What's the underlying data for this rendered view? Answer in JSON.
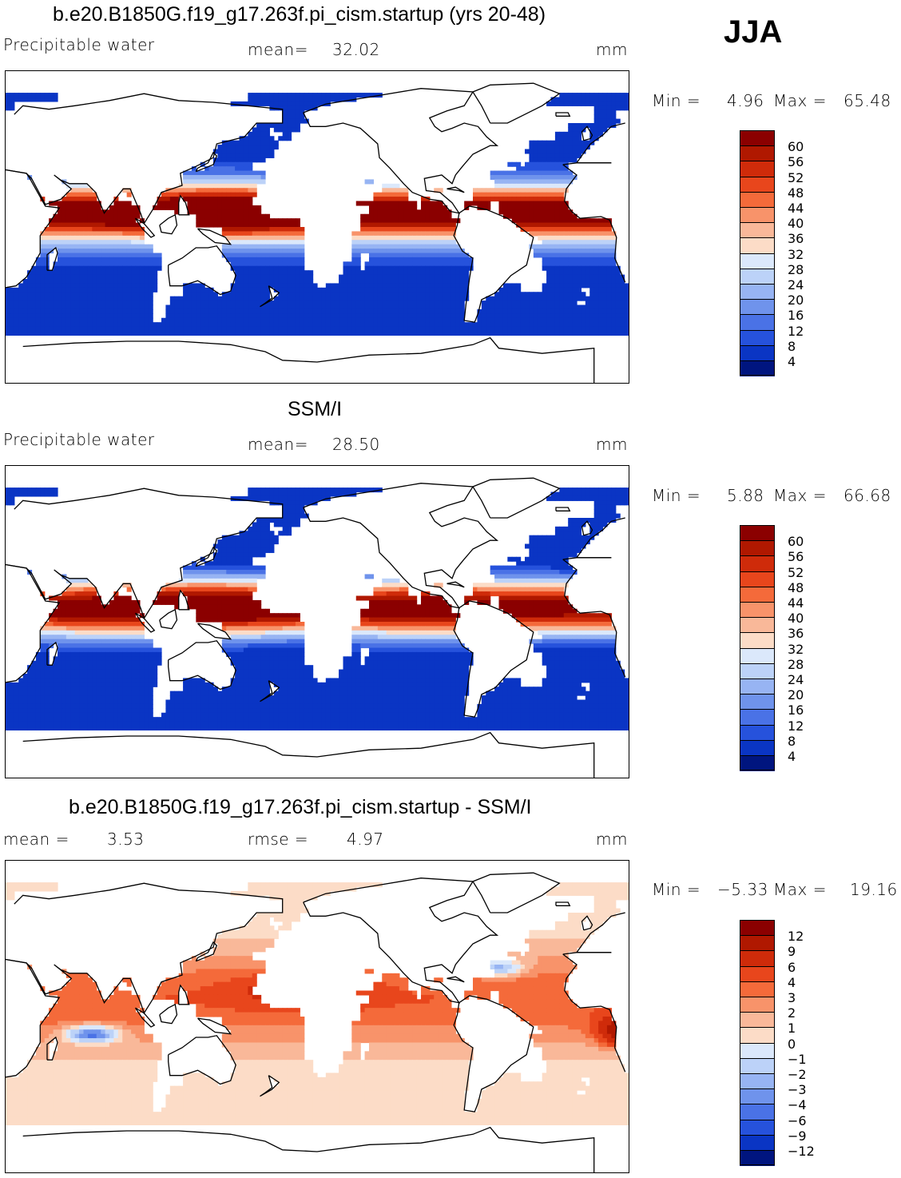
{
  "season": "JJA",
  "panels": [
    {
      "id": "model",
      "title": "b.e20.B1850G.f19_g17.263f.pi_cism.startup (yrs 20-48)",
      "variable": "Precipitable water",
      "stat1_label": "mean=",
      "stat1_value": "32.02",
      "stat2_label": "",
      "stat2_value": "",
      "units": "mm",
      "min_label": "Min =",
      "min_value": "4.96",
      "max_label": "Max =",
      "max_value": "65.48",
      "field": "pw_model"
    },
    {
      "id": "obs",
      "title": "SSM/I",
      "variable": "Precipitable water",
      "stat1_label": "mean=",
      "stat1_value": "28.50",
      "stat2_label": "",
      "stat2_value": "",
      "units": "mm",
      "min_label": "Min =",
      "min_value": "5.88",
      "max_label": "Max =",
      "max_value": "66.68",
      "field": "pw_obs"
    },
    {
      "id": "diff",
      "title": "b.e20.B1850G.f19_g17.263f.pi_cism.startup - SSM/I",
      "variable": "",
      "stat1_label": "mean =",
      "stat1_value": "3.53",
      "stat2_label": "rmse =",
      "stat2_value": "4.97",
      "units": "mm",
      "min_label": "Min =",
      "min_value": "−5.33",
      "max_label": "Max =",
      "max_value": "19.16",
      "field": "diff"
    }
  ],
  "chart_data": [
    {
      "type": "heatmap",
      "title": "b.e20.B1850G.f19_g17.263f.pi_cism.startup (yrs 20-48)",
      "variable": "Precipitable water",
      "units": "mm",
      "mean": 32.02,
      "min": 4.96,
      "max": 65.48,
      "colorbar_levels": [
        60,
        56,
        52,
        48,
        44,
        40,
        36,
        32,
        28,
        24,
        20,
        16,
        12,
        8,
        4
      ],
      "colorbar_colors": [
        "#8b0000",
        "#b01800",
        "#cf2b0a",
        "#e8461c",
        "#f46a3a",
        "#f8936a",
        "#f9b899",
        "#fcdcc7",
        "#dbe8fb",
        "#bcd2f8",
        "#97b4f3",
        "#6f93ec",
        "#4a72e6",
        "#2652dc",
        "#0a35c4",
        "#00157f"
      ]
    },
    {
      "type": "heatmap",
      "title": "SSM/I",
      "variable": "Precipitable water",
      "units": "mm",
      "mean": 28.5,
      "min": 5.88,
      "max": 66.68,
      "colorbar_levels": [
        60,
        56,
        52,
        48,
        44,
        40,
        36,
        32,
        28,
        24,
        20,
        16,
        12,
        8,
        4
      ],
      "colorbar_colors": [
        "#8b0000",
        "#b01800",
        "#cf2b0a",
        "#e8461c",
        "#f46a3a",
        "#f8936a",
        "#f9b899",
        "#fcdcc7",
        "#dbe8fb",
        "#bcd2f8",
        "#97b4f3",
        "#6f93ec",
        "#4a72e6",
        "#2652dc",
        "#0a35c4",
        "#00157f"
      ]
    },
    {
      "type": "heatmap",
      "title": "b.e20.B1850G.f19_g17.263f.pi_cism.startup - SSM/I",
      "units": "mm",
      "mean": 3.53,
      "rmse": 4.97,
      "min": -5.33,
      "max": 19.16,
      "colorbar_levels": [
        12,
        9,
        6,
        4,
        3,
        2,
        1,
        0,
        -1,
        -2,
        -3,
        -4,
        -6,
        -9,
        -12
      ],
      "colorbar_labels": [
        "12",
        "9",
        "6",
        "4",
        "3",
        "2",
        "1",
        "0",
        "−1",
        "−2",
        "−3",
        "−4",
        "−6",
        "−9",
        "−12"
      ],
      "colorbar_colors": [
        "#8b0000",
        "#b01800",
        "#cf2b0a",
        "#e8461c",
        "#f46a3a",
        "#f8936a",
        "#f9b899",
        "#fcdcc7",
        "#dbe8fb",
        "#bcd2f8",
        "#97b4f3",
        "#6f93ec",
        "#4a72e6",
        "#2652dc",
        "#0a35c4",
        "#00157f"
      ]
    }
  ]
}
